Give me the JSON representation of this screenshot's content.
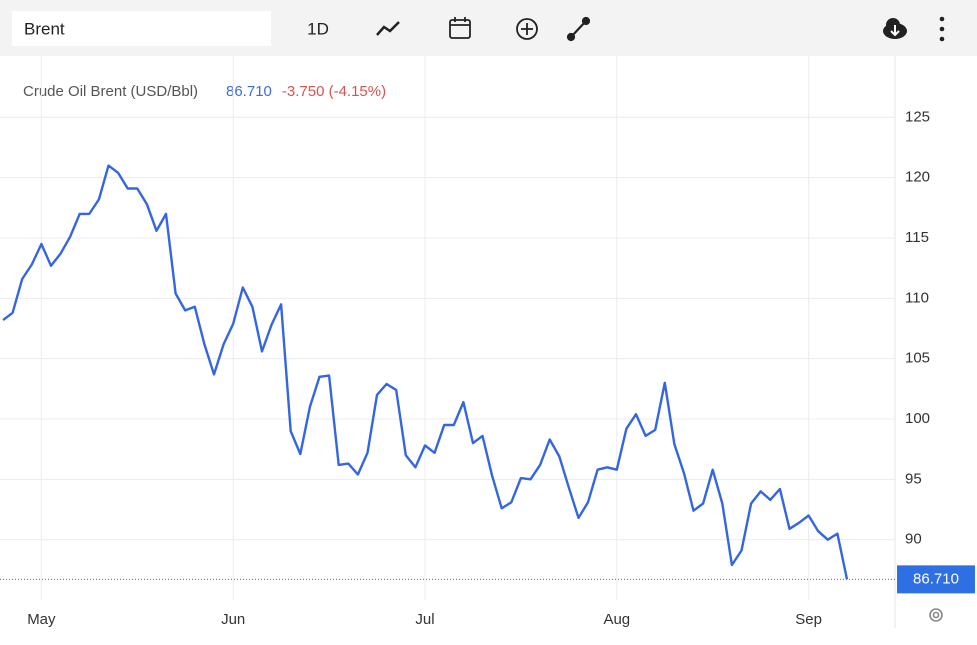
{
  "toolbar": {
    "search": "Brent",
    "interval": "1D"
  },
  "chart_data": {
    "type": "line",
    "title": "Crude Oil Brent (USD/Bbl)",
    "last_price": "86.710",
    "change": "-3.750 (-4.15%)",
    "categories": [
      null,
      null,
      null,
      null,
      "May",
      null,
      null,
      null,
      null,
      null,
      null,
      null,
      null,
      null,
      null,
      null,
      null,
      null,
      null,
      null,
      null,
      null,
      null,
      null,
      "Jun",
      null,
      null,
      null,
      null,
      null,
      null,
      null,
      null,
      null,
      null,
      null,
      null,
      null,
      null,
      null,
      null,
      null,
      null,
      null,
      "Jul",
      null,
      null,
      null,
      null,
      null,
      null,
      null,
      null,
      null,
      null,
      null,
      null,
      null,
      null,
      null,
      null,
      null,
      null,
      null,
      "Aug",
      null,
      null,
      null,
      null,
      null,
      null,
      null,
      null,
      null,
      null,
      null,
      null,
      null,
      null,
      null,
      null,
      null,
      null,
      null,
      "Sep",
      null,
      null,
      null,
      null
    ],
    "series": [
      {
        "name": "Crude Oil Brent (USD/Bbl)",
        "color": "#3366e0",
        "values": [
          108.2,
          108.8,
          111.6,
          112.8,
          114.5,
          112.7,
          113.7,
          115.1,
          117.0,
          117.0,
          118.2,
          121.0,
          120.4,
          119.1,
          119.1,
          117.8,
          115.6,
          117.0,
          110.4,
          109.0,
          109.3,
          106.2,
          103.7,
          106.2,
          107.9,
          110.9,
          109.3,
          105.6,
          107.8,
          109.5,
          99.0,
          97.1,
          101.0,
          103.5,
          103.6,
          96.2,
          96.3,
          95.4,
          97.2,
          102.0,
          102.9,
          102.4,
          97.0,
          96.0,
          97.8,
          97.2,
          99.5,
          99.5,
          101.4,
          98.0,
          98.6,
          95.3,
          92.6,
          93.1,
          95.1,
          95.0,
          96.2,
          98.3,
          96.9,
          94.3,
          91.8,
          93.1,
          95.8,
          96.0,
          95.8,
          99.2,
          100.4,
          98.6,
          99.1,
          103.0,
          97.9,
          95.5,
          92.4,
          93.0,
          95.8,
          93.0,
          87.9,
          89.1,
          93.0,
          94.0,
          93.3,
          94.2,
          90.9,
          91.4,
          92.0,
          90.7,
          90.0,
          90.5,
          86.71
        ]
      }
    ],
    "last_marker": {
      "value": 86.71,
      "label": "86.710",
      "color": "#2f6fe4"
    },
    "ylim": [
      85,
      130
    ],
    "yticks": [
      90,
      95,
      100,
      105,
      110,
      115,
      120,
      125
    ],
    "grid": true
  }
}
